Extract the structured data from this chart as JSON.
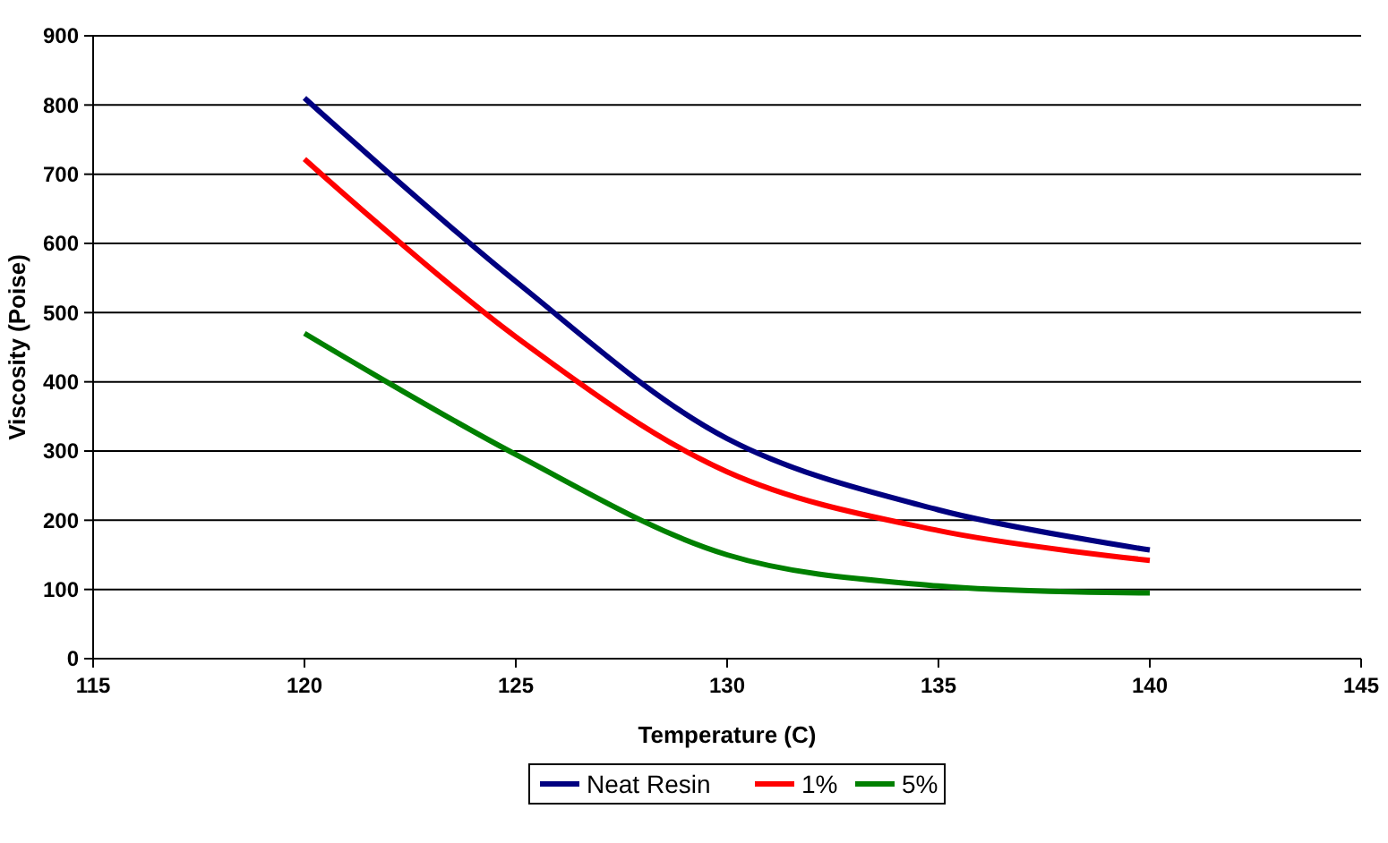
{
  "chart_data": {
    "type": "line",
    "xlabel": "Temperature (C)",
    "ylabel": "Viscosity (Poise)",
    "x": [
      120,
      125,
      130,
      135,
      140
    ],
    "series": [
      {
        "name": "Neat Resin",
        "color": "#000080",
        "values": [
          810,
          545,
          318,
          215,
          157
        ]
      },
      {
        "name": "1%",
        "color": "#ff0000",
        "values": [
          722,
          465,
          270,
          185,
          142
        ]
      },
      {
        "name": "5%",
        "color": "#008000",
        "values": [
          470,
          295,
          150,
          105,
          95
        ]
      }
    ],
    "xlim": [
      115,
      145
    ],
    "xticks": [
      115,
      120,
      125,
      130,
      135,
      140,
      145
    ],
    "ylim": [
      0,
      900
    ],
    "yticks": [
      0,
      100,
      200,
      300,
      400,
      500,
      600,
      700,
      800,
      900
    ],
    "grid": "y",
    "legend": "bottom",
    "marker": "none",
    "line_style": "solid"
  }
}
